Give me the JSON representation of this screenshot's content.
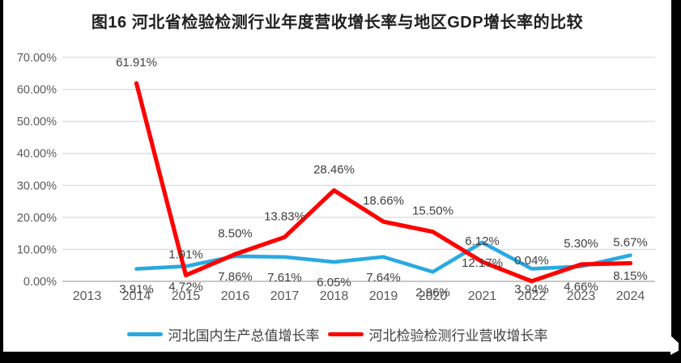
{
  "window": {
    "background": "#000000",
    "panel_background": "#ffffff"
  },
  "chart_data": {
    "type": "line",
    "title": "图16 河北省检验检测行业年度营收增长率与地区GDP增长率的比较",
    "categories": [
      "2013",
      "2014",
      "2015",
      "2016",
      "2017",
      "2018",
      "2019",
      "2020",
      "2021",
      "2022",
      "2023",
      "2024"
    ],
    "series": [
      {
        "name": "河北国内生产总值增长率",
        "color": "#29A9E1",
        "label_position": "below",
        "values": [
          null,
          3.91,
          4.72,
          7.86,
          7.61,
          6.05,
          7.64,
          2.96,
          12.17,
          3.94,
          4.66,
          8.15
        ],
        "labels": [
          "",
          "3.91%",
          "4.72%",
          "7.86%",
          "7.61%",
          "6.05%",
          "7.64%",
          "2.96%",
          "12.17%",
          "3.94%",
          "4.66%",
          "8.15%"
        ]
      },
      {
        "name": "河北检验检测行业营收增长率",
        "color": "#FF0000",
        "label_position": "above",
        "values": [
          null,
          61.91,
          1.91,
          8.5,
          13.83,
          28.46,
          18.66,
          15.5,
          6.12,
          0.04,
          5.3,
          5.67
        ],
        "labels": [
          "",
          "61.91%",
          "1.91%",
          "8.50%",
          "13.83%",
          "28.46%",
          "18.66%",
          "15.50%",
          "6.12%",
          "0.04%",
          "5.30%",
          "5.67%"
        ]
      }
    ],
    "y_axis": {
      "min": 0,
      "max": 70,
      "step": 10,
      "tick_labels": [
        "0.00%",
        "10.00%",
        "20.00%",
        "30.00%",
        "40.00%",
        "50.00%",
        "60.00%",
        "70.00%"
      ]
    },
    "grid": true,
    "legend_position": "bottom",
    "colors": {
      "grid_line": "#D9D9D9",
      "zero_line": "#BFBFBF",
      "tick_text": "#595959",
      "data_label_text": "#404040",
      "title_text": "#1F1F1F"
    }
  }
}
